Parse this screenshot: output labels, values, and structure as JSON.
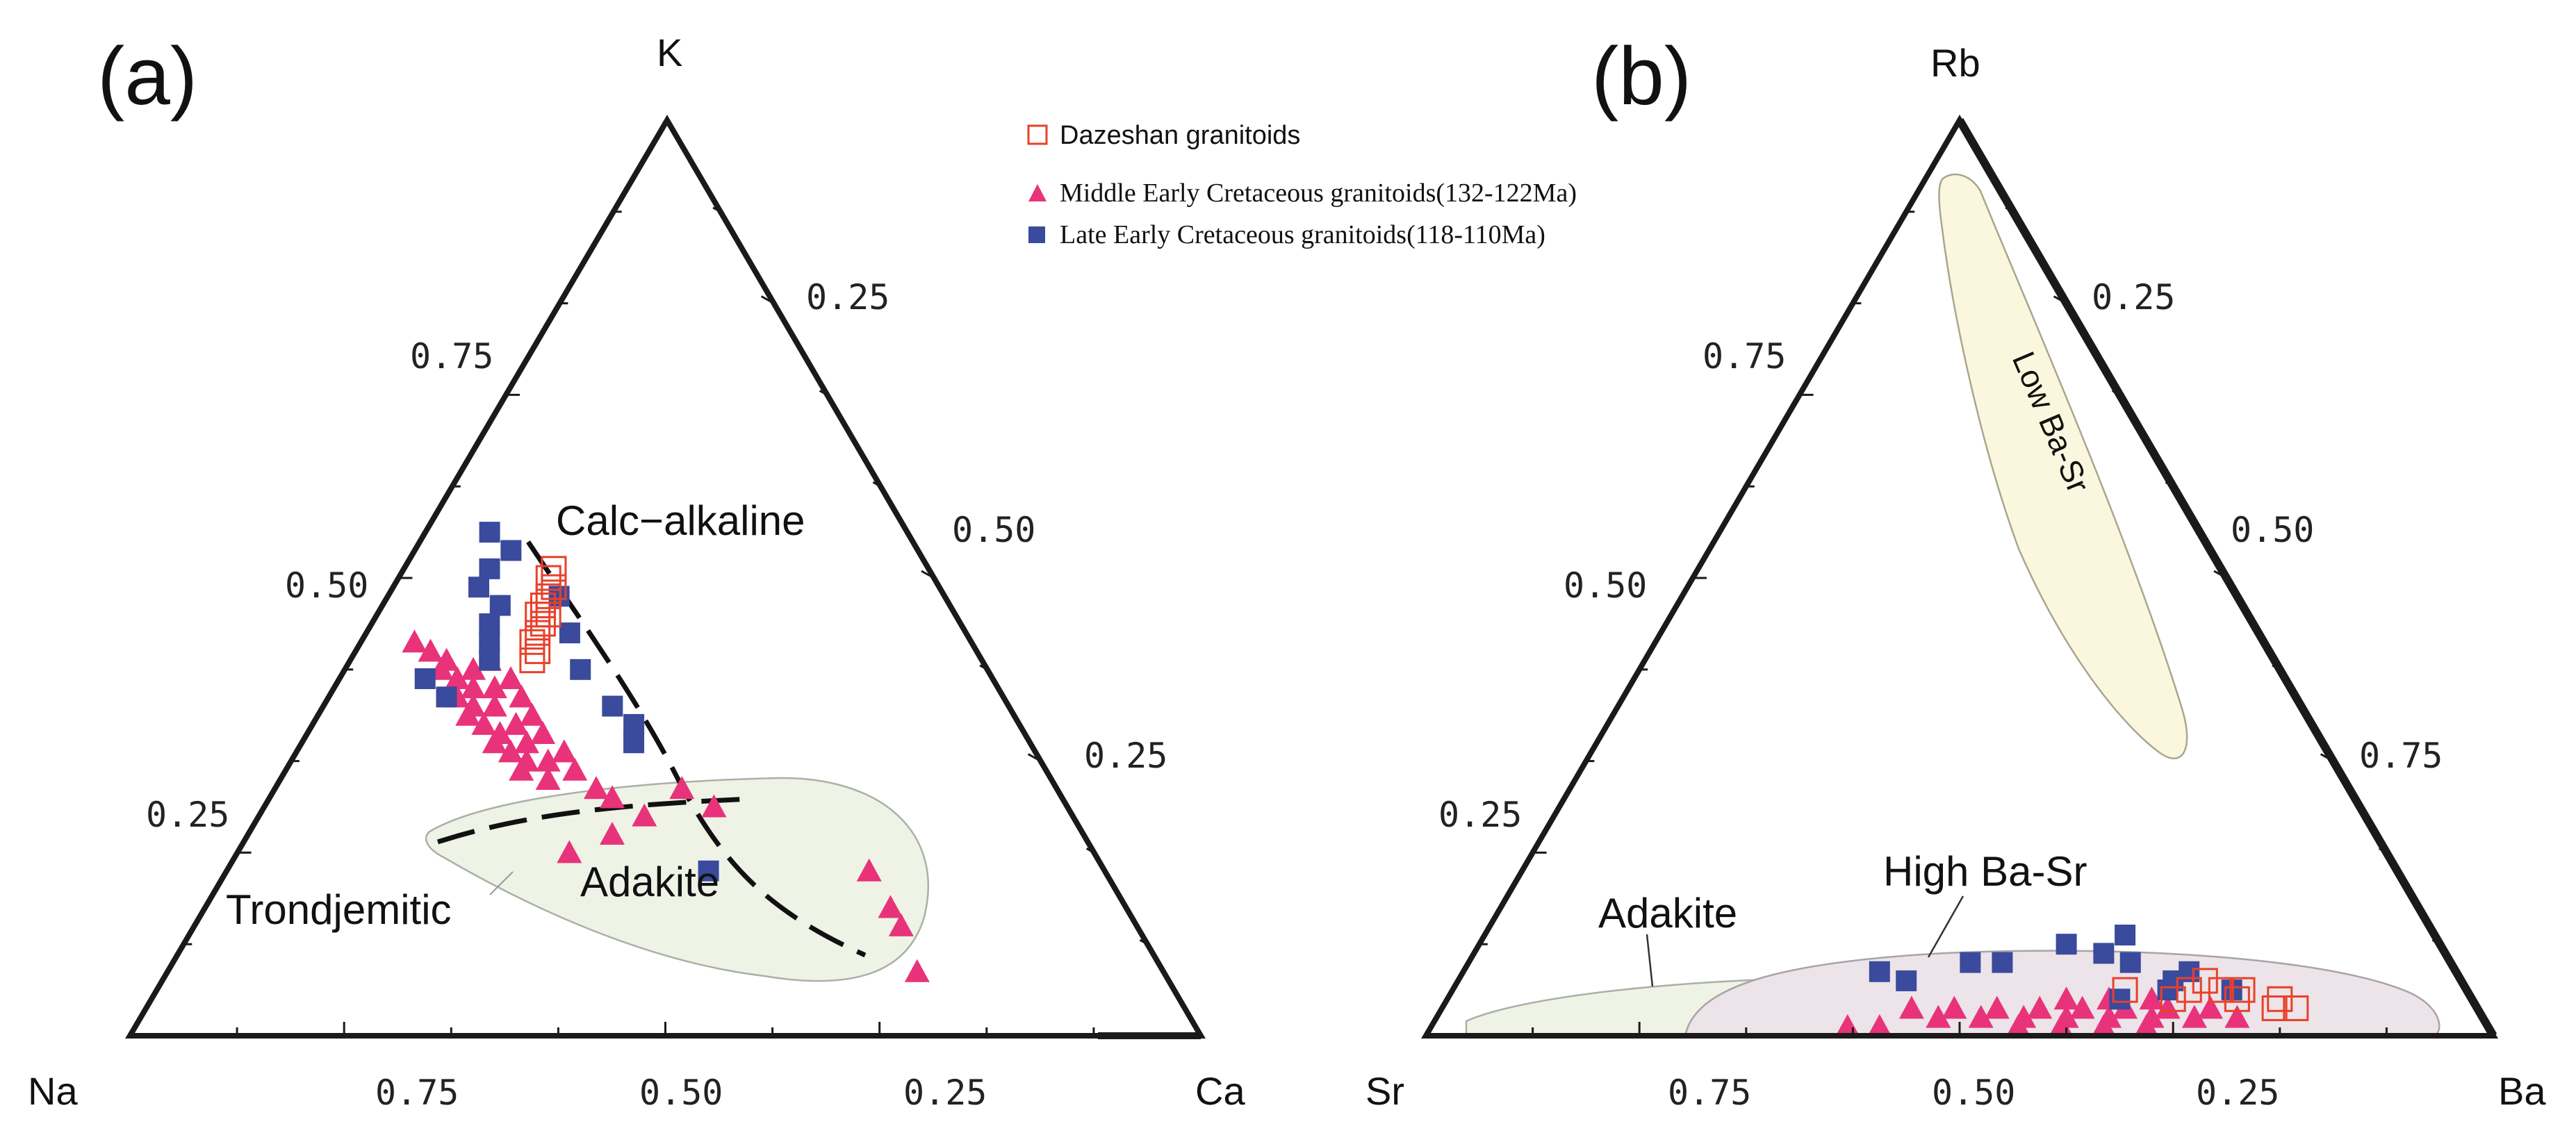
{
  "legend": [
    {
      "label": "Dazeshan granitoids",
      "marker": "open-square",
      "color": "#e8402a"
    },
    {
      "label": "Middle Early Cretaceous granitoids(132-122Ma)",
      "marker": "triangle",
      "color": "#e8337a"
    },
    {
      "label": "Late Early Cretaceous granitoids(118-110Ma)",
      "marker": "filled-square",
      "color": "#3a4a9c"
    }
  ],
  "chart_data": [
    {
      "type": "scatter",
      "subtype": "ternary",
      "panel_label": "(a)",
      "vertices": {
        "top": "K",
        "left": "Na",
        "right": "Ca"
      },
      "tick_labels": {
        "left_edge": [
          "0.25",
          "0.50",
          "0.75"
        ],
        "right_edge": [
          "0.25",
          "0.50",
          "0.25"
        ],
        "bottom_edge": [
          "0.75",
          "0.50",
          "0.25"
        ]
      },
      "regions": [
        {
          "label": "Calc−alkaline",
          "kind": "trend-line"
        },
        {
          "label": "Trondjemitic",
          "kind": "trend-line"
        },
        {
          "label": "Adakite",
          "kind": "field",
          "fill": "#eef3e6"
        }
      ],
      "series": [
        {
          "name": "Dazeshan granitoids",
          "points": [
            [
              0.51,
              0.35,
              0.14
            ],
            [
              0.49,
              0.36,
              0.15
            ],
            [
              0.48,
              0.37,
              0.15
            ],
            [
              0.47,
              0.38,
              0.15
            ],
            [
              0.46,
              0.38,
              0.16
            ],
            [
              0.45,
              0.39,
              0.16
            ],
            [
              0.44,
              0.4,
              0.16
            ],
            [
              0.43,
              0.41,
              0.16
            ],
            [
              0.42,
              0.41,
              0.17
            ],
            [
              0.41,
              0.42,
              0.17
            ],
            [
              0.46,
              0.39,
              0.15
            ],
            [
              0.5,
              0.36,
              0.14
            ]
          ]
        },
        {
          "name": "Middle Early Cretaceous granitoids(132-122Ma)",
          "points": [
            [
              0.43,
              0.52,
              0.05
            ],
            [
              0.42,
              0.51,
              0.07
            ],
            [
              0.41,
              0.5,
              0.09
            ],
            [
              0.4,
              0.51,
              0.09
            ],
            [
              0.39,
              0.5,
              0.11
            ],
            [
              0.38,
              0.49,
              0.13
            ],
            [
              0.37,
              0.51,
              0.12
            ],
            [
              0.36,
              0.5,
              0.14
            ],
            [
              0.35,
              0.51,
              0.14
            ],
            [
              0.34,
              0.5,
              0.16
            ],
            [
              0.33,
              0.49,
              0.18
            ],
            [
              0.32,
              0.5,
              0.18
            ],
            [
              0.31,
              0.49,
              0.2
            ],
            [
              0.3,
              0.48,
              0.22
            ],
            [
              0.29,
              0.49,
              0.22
            ],
            [
              0.28,
              0.47,
              0.25
            ],
            [
              0.41,
              0.46,
              0.13
            ],
            [
              0.39,
              0.45,
              0.16
            ],
            [
              0.37,
              0.45,
              0.18
            ],
            [
              0.35,
              0.45,
              0.2
            ],
            [
              0.33,
              0.45,
              0.22
            ],
            [
              0.31,
              0.44,
              0.25
            ],
            [
              0.29,
              0.44,
              0.27
            ],
            [
              0.27,
              0.43,
              0.3
            ],
            [
              0.36,
              0.48,
              0.16
            ],
            [
              0.34,
              0.47,
              0.19
            ],
            [
              0.32,
              0.47,
              0.21
            ],
            [
              0.3,
              0.46,
              0.24
            ],
            [
              0.4,
              0.48,
              0.12
            ],
            [
              0.38,
              0.47,
              0.15
            ],
            [
              0.26,
              0.42,
              0.32
            ],
            [
              0.24,
              0.4,
              0.36
            ],
            [
              0.22,
              0.44,
              0.34
            ],
            [
              0.2,
              0.49,
              0.31
            ],
            [
              0.27,
              0.35,
              0.38
            ],
            [
              0.25,
              0.33,
              0.42
            ],
            [
              0.18,
              0.22,
              0.6
            ],
            [
              0.14,
              0.22,
              0.64
            ],
            [
              0.12,
              0.22,
              0.66
            ],
            [
              0.07,
              0.23,
              0.7
            ]
          ]
        },
        {
          "name": "Late Early Cretaceous granitoids(118-110Ma)",
          "points": [
            [
              0.55,
              0.39,
              0.06
            ],
            [
              0.53,
              0.38,
              0.09
            ],
            [
              0.51,
              0.41,
              0.08
            ],
            [
              0.49,
              0.43,
              0.08
            ],
            [
              0.47,
              0.42,
              0.11
            ],
            [
              0.45,
              0.44,
              0.11
            ],
            [
              0.43,
              0.45,
              0.12
            ],
            [
              0.41,
              0.46,
              0.13
            ],
            [
              0.39,
              0.53,
              0.08
            ],
            [
              0.37,
              0.52,
              0.11
            ],
            [
              0.48,
              0.36,
              0.16
            ],
            [
              0.44,
              0.37,
              0.19
            ],
            [
              0.4,
              0.38,
              0.22
            ],
            [
              0.36,
              0.37,
              0.27
            ],
            [
              0.34,
              0.36,
              0.3
            ],
            [
              0.32,
              0.37,
              0.31
            ],
            [
              0.18,
              0.37,
              0.45
            ]
          ]
        }
      ]
    },
    {
      "type": "scatter",
      "subtype": "ternary",
      "panel_label": "(b)",
      "vertices": {
        "top": "Rb",
        "left": "Sr",
        "right": "Ba"
      },
      "tick_labels": {
        "left_edge": [
          "0.25",
          "0.50",
          "0.75"
        ],
        "right_edge": [
          "0.25",
          "0.50",
          "0.75"
        ],
        "bottom_edge": [
          "0.75",
          "0.50",
          "0.25"
        ]
      },
      "regions": [
        {
          "label": "Low Ba-Sr",
          "kind": "field",
          "fill": "#fbf7de"
        },
        {
          "label": "High Ba-Sr",
          "kind": "field",
          "fill": "#ece4e8"
        },
        {
          "label": "Adakite",
          "kind": "field",
          "fill": "#eef3e6"
        }
      ],
      "series": [
        {
          "name": "Dazeshan granitoids",
          "points": [
            [
              0.05,
              0.32,
              0.63
            ],
            [
              0.04,
              0.28,
              0.68
            ],
            [
              0.05,
              0.26,
              0.69
            ],
            [
              0.06,
              0.24,
              0.7
            ],
            [
              0.04,
              0.22,
              0.74
            ],
            [
              0.05,
              0.21,
              0.74
            ],
            [
              0.03,
              0.19,
              0.78
            ],
            [
              0.04,
              0.18,
              0.78
            ],
            [
              0.05,
              0.23,
              0.72
            ],
            [
              0.03,
              0.17,
              0.8
            ]
          ]
        },
        {
          "name": "Middle Early Cretaceous granitoids(132-122Ma)",
          "points": [
            [
              0.03,
              0.53,
              0.44
            ],
            [
              0.02,
              0.51,
              0.47
            ],
            [
              0.03,
              0.49,
              0.48
            ],
            [
              0.02,
              0.47,
              0.51
            ],
            [
              0.03,
              0.45,
              0.52
            ],
            [
              0.02,
              0.43,
              0.55
            ],
            [
              0.03,
              0.41,
              0.56
            ],
            [
              0.02,
              0.39,
              0.59
            ],
            [
              0.03,
              0.37,
              0.6
            ],
            [
              0.02,
              0.35,
              0.63
            ],
            [
              0.03,
              0.33,
              0.64
            ],
            [
              0.02,
              0.31,
              0.67
            ],
            [
              0.03,
              0.29,
              0.68
            ],
            [
              0.02,
              0.27,
              0.71
            ],
            [
              0.03,
              0.25,
              0.72
            ],
            [
              0.02,
              0.23,
              0.75
            ],
            [
              0.01,
              0.44,
              0.55
            ],
            [
              0.01,
              0.4,
              0.59
            ],
            [
              0.01,
              0.36,
              0.63
            ],
            [
              0.01,
              0.32,
              0.67
            ],
            [
              0.04,
              0.38,
              0.58
            ],
            [
              0.04,
              0.34,
              0.62
            ],
            [
              0.04,
              0.3,
              0.66
            ],
            [
              0.01,
              0.6,
              0.39
            ],
            [
              0.01,
              0.57,
              0.42
            ]
          ]
        },
        {
          "name": "Late Early Cretaceous granitoids(118-110Ma)",
          "points": [
            [
              0.07,
              0.54,
              0.39
            ],
            [
              0.06,
              0.52,
              0.42
            ],
            [
              0.08,
              0.45,
              0.47
            ],
            [
              0.08,
              0.42,
              0.5
            ],
            [
              0.1,
              0.35,
              0.55
            ],
            [
              0.09,
              0.32,
              0.59
            ],
            [
              0.11,
              0.29,
              0.6
            ],
            [
              0.08,
              0.3,
              0.62
            ],
            [
              0.06,
              0.27,
              0.67
            ],
            [
              0.07,
              0.25,
              0.68
            ],
            [
              0.05,
              0.22,
              0.73
            ],
            [
              0.05,
              0.28,
              0.67
            ],
            [
              0.04,
              0.33,
              0.63
            ]
          ]
        }
      ]
    }
  ]
}
